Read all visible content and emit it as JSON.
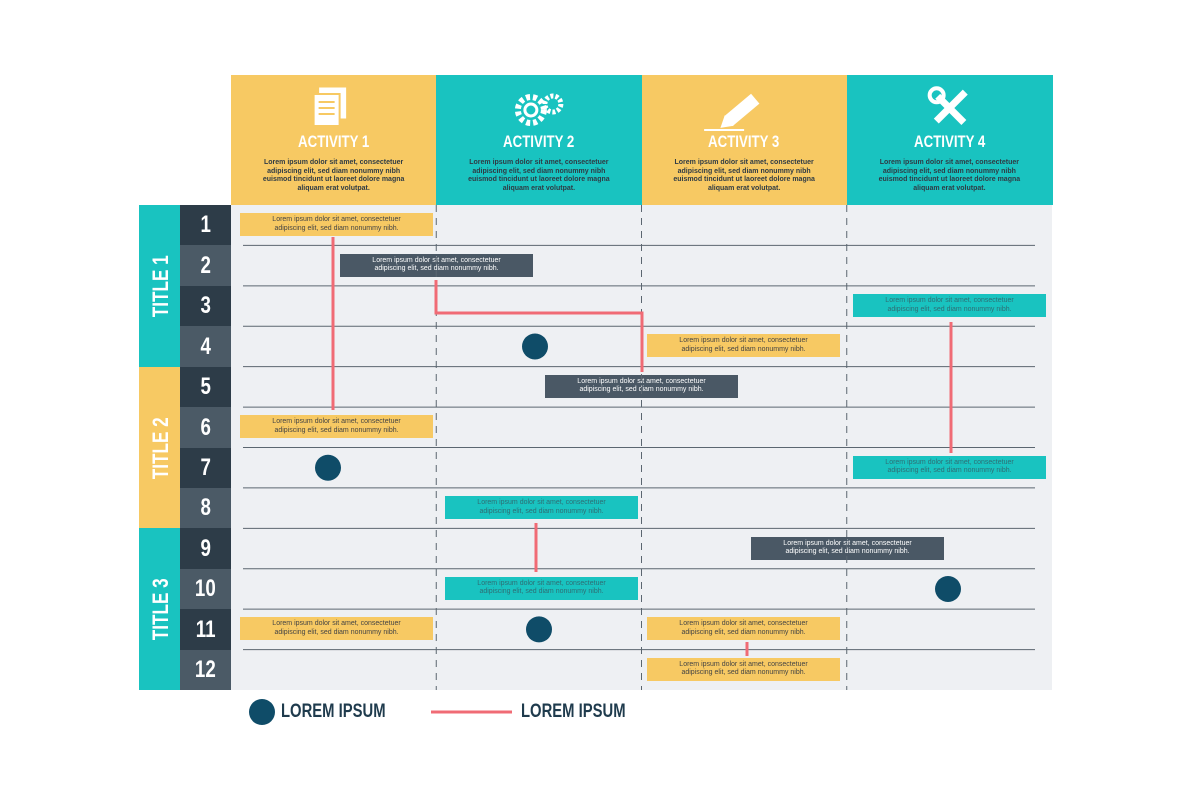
{
  "columns": [
    {
      "title": "ACTIVITY 1",
      "description": "Lorem ipsum dolor sit amet, consectetuer adipiscing elit, sed diam nonummy nibh euismod tincidunt ut laoreet dolore magna aliquam erat volutpat."
    },
    {
      "title": "ACTIVITY 2",
      "description": "Lorem ipsum dolor sit amet, consectetuer adipiscing elit, sed diam nonummy nibh euismod tincidunt ut laoreet dolore magna aliquam erat volutpat."
    },
    {
      "title": "ACTIVITY 3",
      "description": "Lorem ipsum dolor sit amet, consectetuer adipiscing elit, sed diam nonummy nibh euismod tincidunt ut laoreet dolore magna aliquam erat volutpat."
    },
    {
      "title": "ACTIVITY 4",
      "description": "Lorem ipsum dolor sit amet, consectetuer adipiscing elit, sed diam nonummy nibh euismod tincidunt ut laoreet dolore magna aliquam erat volutpat."
    }
  ],
  "groups": [
    "TITLE 1",
    "TITLE 2",
    "TITLE 3"
  ],
  "rows": [
    "1",
    "2",
    "3",
    "4",
    "5",
    "6",
    "7",
    "8",
    "9",
    "10",
    "11",
    "12"
  ],
  "tasks": [
    {
      "text": "Lorem ipsum dolor sit amet, consectetuer adipiscing elit, sed diam nonummy nibh."
    },
    {
      "text": "Lorem ipsum dolor sit amet, consectetuer adipiscing elit, sed diam nonummy nibh."
    },
    {
      "text": "Lorem ipsum dolor sit amet, consectetuer adipiscing elit, sed diam nonummy nibh."
    },
    {
      "text": "Lorem ipsum dolor sit amet, consectetuer adipiscing elit, sed diam nonummy nibh."
    },
    {
      "text": "Lorem ipsum dolor sit amet, consectetuer adipiscing elit, sed diam nonummy nibh."
    },
    {
      "text": "Lorem ipsum dolor sit amet, consectetuer adipiscing elit, sed diam nonummy nibh."
    },
    {
      "text": "Lorem ipsum dolor sit amet, consectetuer adipiscing elit, sed diam nonummy nibh."
    },
    {
      "text": "Lorem ipsum dolor sit amet, consectetuer adipiscing elit, sed diam nonummy nibh."
    },
    {
      "text": "Lorem ipsum dolor sit amet, consectetuer adipiscing elit, sed diam nonummy nibh."
    },
    {
      "text": "Lorem ipsum dolor sit amet, consectetuer adipiscing elit, sed diam nonummy nibh."
    },
    {
      "text": "Lorem ipsum dolor sit amet, consectetuer adipiscing elit, sed diam nonummy nibh."
    },
    {
      "text": "Lorem ipsum dolor sit amet, consectetuer adipiscing elit, sed diam nonummy nibh."
    },
    {
      "text": "Lorem ipsum dolor sit amet, consectetuer adipiscing elit, sed diam nonummy nibh."
    }
  ],
  "legend": [
    "LOREM IPSUM",
    "LOREM IPSUM"
  ]
}
